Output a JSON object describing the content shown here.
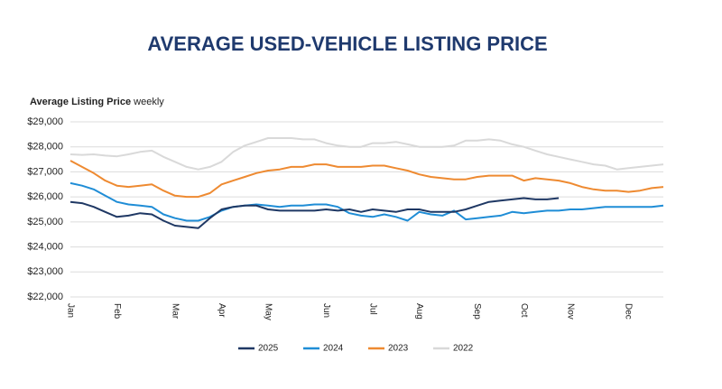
{
  "chart_data": {
    "type": "line",
    "title": "AVERAGE USED-VEHICLE LISTING PRICE",
    "subtitle": "Average Listing Price",
    "subtitle_note": "weekly",
    "categories": [
      "Jan",
      null,
      null,
      null,
      "Feb",
      null,
      null,
      null,
      null,
      "Mar",
      null,
      null,
      null,
      "Apr",
      null,
      null,
      null,
      "May",
      null,
      null,
      null,
      null,
      "Jun",
      null,
      null,
      null,
      "Jul",
      null,
      null,
      null,
      "Aug",
      null,
      null,
      null,
      null,
      "Sep",
      null,
      null,
      null,
      "Oct",
      null,
      null,
      null,
      "Nov",
      null,
      null,
      null,
      null,
      "Dec",
      null,
      null,
      null
    ],
    "ylim": [
      22000,
      29000
    ],
    "yticks": [
      {
        "value": 22000,
        "label": "$22,000"
      },
      {
        "value": 23000,
        "label": "$23,000"
      },
      {
        "value": 24000,
        "label": "$24,000"
      },
      {
        "value": 25000,
        "label": "$25,000"
      },
      {
        "value": 26000,
        "label": "$26,000"
      },
      {
        "value": 27000,
        "label": "$27,000"
      },
      {
        "value": 28000,
        "label": "$28,000"
      },
      {
        "value": 29000,
        "label": "$29,000"
      }
    ],
    "grid": true,
    "legend": "bottom",
    "series": [
      {
        "name": "2025",
        "color": "#1f3864",
        "values": [
          25800,
          25750,
          25600,
          25400,
          25200,
          25250,
          25350,
          25300,
          25050,
          24850,
          24800,
          24750,
          25150,
          25500,
          25600,
          25650,
          25650,
          25500,
          25450,
          25450,
          25450,
          25450,
          25500,
          25450,
          25500,
          25400,
          25500,
          25450,
          25400,
          25500,
          25500,
          25400,
          25400,
          25400,
          25500,
          25650,
          25800,
          25850,
          25900,
          25950,
          25900,
          25900,
          25950,
          null,
          null,
          null,
          null,
          null,
          null,
          null,
          null,
          null
        ]
      },
      {
        "name": "2024",
        "color": "#1f8dd6",
        "values": [
          26550,
          26450,
          26300,
          26050,
          25800,
          25700,
          25650,
          25600,
          25300,
          25150,
          25050,
          25050,
          25200,
          25450,
          25600,
          25650,
          25700,
          25650,
          25600,
          25650,
          25650,
          25700,
          25700,
          25600,
          25350,
          25250,
          25200,
          25300,
          25200,
          25050,
          25400,
          25300,
          25250,
          25450,
          25100,
          25150,
          25200,
          25250,
          25400,
          25350,
          25400,
          25450,
          25450,
          25500,
          25500,
          25550,
          25600,
          25600,
          25600,
          25600,
          25600,
          25650
        ]
      },
      {
        "name": "2023",
        "color": "#ee8a31",
        "values": [
          27450,
          27200,
          26950,
          26650,
          26450,
          26400,
          26450,
          26500,
          26250,
          26050,
          26000,
          26000,
          26150,
          26500,
          26650,
          26800,
          26950,
          27050,
          27100,
          27200,
          27200,
          27300,
          27300,
          27200,
          27200,
          27200,
          27250,
          27250,
          27150,
          27050,
          26900,
          26800,
          26750,
          26700,
          26700,
          26800,
          26850,
          26850,
          26850,
          26650,
          26750,
          26700,
          26650,
          26550,
          26400,
          26300,
          26250,
          26250,
          26200,
          26250,
          26350,
          26400
        ]
      },
      {
        "name": "2022",
        "color": "#d9d9d9",
        "values": [
          27700,
          27680,
          27700,
          27650,
          27620,
          27700,
          27800,
          27850,
          27600,
          27400,
          27200,
          27100,
          27200,
          27400,
          27800,
          28050,
          28200,
          28350,
          28350,
          28350,
          28300,
          28300,
          28150,
          28050,
          28000,
          28000,
          28150,
          28150,
          28200,
          28100,
          28000,
          28000,
          28000,
          28050,
          28250,
          28250,
          28300,
          28250,
          28100,
          28000,
          27850,
          27700,
          27600,
          27500,
          27400,
          27300,
          27250,
          27100,
          27150,
          27200,
          27250,
          27300
        ]
      }
    ]
  }
}
